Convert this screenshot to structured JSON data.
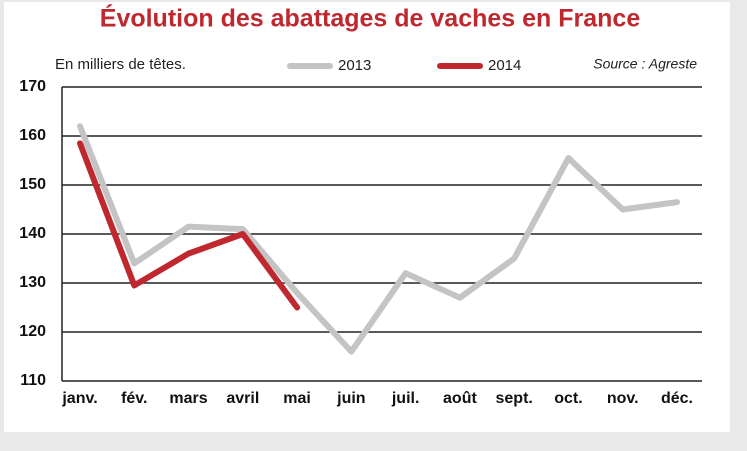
{
  "chart_data": {
    "type": "line",
    "title": "Évolution des abattages de vaches en France",
    "subtitle": "En milliers de têtes.",
    "source": "Source : Agreste",
    "categories": [
      "janv.",
      "fév.",
      "mars",
      "avril",
      "mai",
      "juin",
      "juil.",
      "août",
      "sept.",
      "oct.",
      "nov.",
      "déc."
    ],
    "series": [
      {
        "name": "2013",
        "color": "#c4c4c4",
        "values": [
          162,
          134,
          141.5,
          141,
          128,
          116,
          132,
          127,
          135,
          155.5,
          145,
          146.5
        ]
      },
      {
        "name": "2014",
        "color": "#c0282f",
        "values": [
          158.5,
          129.5,
          136,
          140,
          125,
          null,
          null,
          null,
          null,
          null,
          null,
          null
        ]
      }
    ],
    "ylim": [
      110,
      170
    ],
    "yticks": [
      110,
      120,
      130,
      140,
      150,
      160,
      170
    ],
    "grid": true
  }
}
